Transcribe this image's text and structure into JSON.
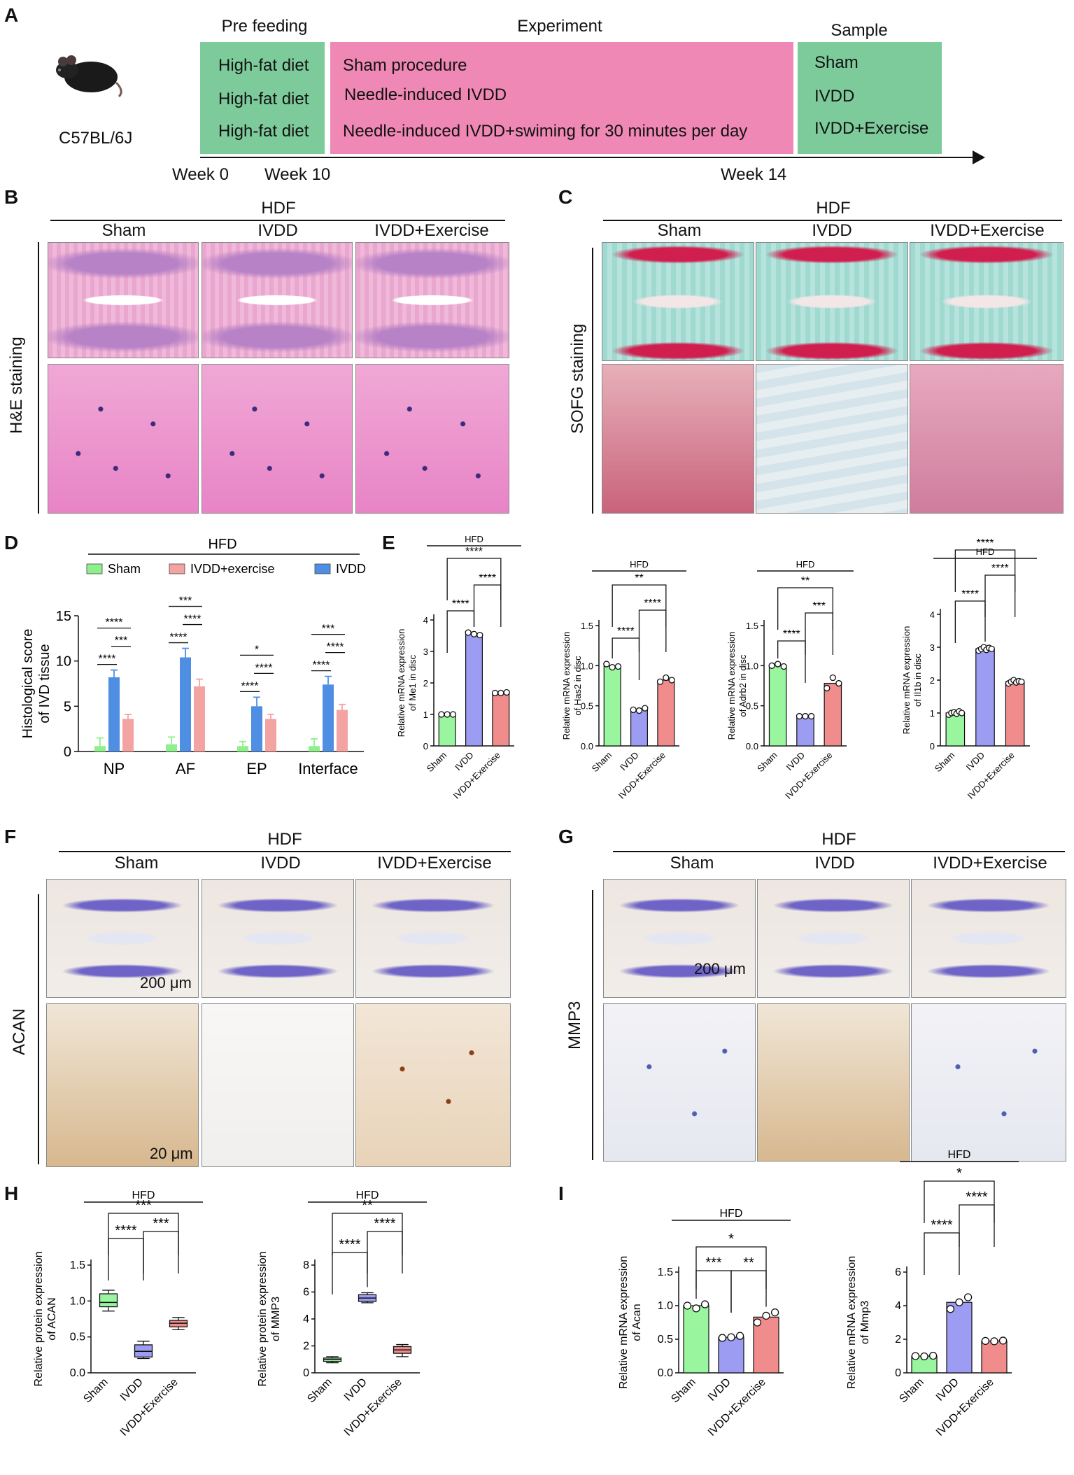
{
  "panelA": {
    "label": "A",
    "mouse_strain": "C57BL/6J",
    "stages": {
      "prefeed": {
        "title": "Pre feeding",
        "rows": [
          "High-fat diet",
          "High-fat diet",
          "High-fat diet"
        ],
        "color": "#7dcb9b"
      },
      "experiment": {
        "title": "Experiment",
        "rows": [
          "Sham procedure",
          "Needle-induced IVDD",
          "Needle-induced IVDD+swiming for 30 minutes per day"
        ],
        "color": "#f088b5"
      },
      "sample": {
        "title": "Sample",
        "rows": [
          "Sham",
          "IVDD",
          "IVDD+Exercise"
        ],
        "color": "#7dcb9b"
      }
    },
    "timeline": [
      "Week 0",
      "Week 10",
      "Week 14"
    ]
  },
  "panelB": {
    "label": "B",
    "group": "HDF",
    "cols": [
      "Sham",
      "IVDD",
      "IVDD+Exercise"
    ],
    "row_label": "H&E staining"
  },
  "panelC": {
    "label": "C",
    "group": "HDF",
    "cols": [
      "Sham",
      "IVDD",
      "IVDD+Exercise"
    ],
    "row_label": "SOFG staining"
  },
  "panelD": {
    "label": "D",
    "group": "HFD"
  },
  "panelE": {
    "label": "E"
  },
  "panelF": {
    "label": "F",
    "group": "HDF",
    "cols": [
      "Sham",
      "IVDD",
      "IVDD+Exercise"
    ],
    "row_label": "ACAN",
    "scale_low": "200 μm",
    "scale_high": "20 μm"
  },
  "panelG": {
    "label": "G",
    "group": "HDF",
    "cols": [
      "Sham",
      "IVDD",
      "IVDD+Exercise"
    ],
    "row_label": "MMP3",
    "scale_low": "200 μm"
  },
  "panelH": {
    "label": "H"
  },
  "panelI": {
    "label": "I"
  },
  "colors": {
    "sham": "#9af59f",
    "ivdd": "#9b9cf2",
    "exercise": "#f18c8c",
    "d_sham": "#8ef08a",
    "d_ivdd": "#4f8fe3",
    "d_exercise": "#f4a3a3"
  },
  "chart_data": [
    {
      "id": "D",
      "type": "bar",
      "title": "HFD",
      "ylabel": "Histological score of IVD tissue",
      "ylim": [
        0,
        15
      ],
      "yticks": [
        0,
        5,
        10,
        15
      ],
      "categories": [
        "NP",
        "AF",
        "EP",
        "Interface"
      ],
      "series": [
        {
          "name": "Sham",
          "values": [
            0.6,
            0.8,
            0.6,
            0.6
          ],
          "errors": [
            0.9,
            0.8,
            0.5,
            0.8
          ]
        },
        {
          "name": "IVDD",
          "values": [
            8.2,
            10.4,
            5.0,
            7.4
          ],
          "errors": [
            0.8,
            1.0,
            1.0,
            0.9
          ]
        },
        {
          "name": "IVDD+exercise",
          "values": [
            3.6,
            7.2,
            3.6,
            4.6
          ],
          "errors": [
            0.5,
            0.8,
            0.5,
            0.6
          ]
        }
      ],
      "legend": [
        "Sham",
        "IVDD+exercise",
        "IVDD"
      ],
      "significance": [
        [
          "****",
          "***",
          "****"
        ],
        [
          "****",
          "****",
          "***"
        ],
        [
          "****",
          "****",
          "*"
        ],
        [
          "****",
          "****",
          "***"
        ]
      ]
    },
    {
      "id": "E1",
      "type": "bar",
      "title": "HFD",
      "ylabel": "Relative mRNA expression of Me1 in disc",
      "ylim": [
        0,
        4
      ],
      "yticks": [
        0,
        1,
        2,
        3,
        4
      ],
      "categories": [
        "Sham",
        "IVDD",
        "IVDD+Exercise"
      ],
      "values": [
        1.0,
        3.55,
        1.68
      ],
      "points": [
        [
          1.0,
          1.0,
          1.0
        ],
        [
          3.6,
          3.55,
          3.52
        ],
        [
          1.68,
          1.68,
          1.7
        ]
      ],
      "significance": [
        [
          "Sham",
          "IVDD",
          "****"
        ],
        [
          "IVDD",
          "IVDD+Exercise",
          "****"
        ],
        [
          "Sham",
          "IVDD+Exercise",
          "****"
        ]
      ]
    },
    {
      "id": "E2",
      "type": "bar",
      "title": "HFD",
      "ylabel": "Relative mRNA expression of Has2 in disc",
      "ylim": [
        0,
        1.5
      ],
      "yticks": [
        0.0,
        0.5,
        1.0,
        1.5
      ],
      "categories": [
        "Sham",
        "IVDD",
        "IVDD+Exercise"
      ],
      "values": [
        1.0,
        0.45,
        0.82
      ],
      "points": [
        [
          1.02,
          0.98,
          0.99
        ],
        [
          0.45,
          0.44,
          0.47
        ],
        [
          0.8,
          0.85,
          0.82
        ]
      ],
      "significance": [
        [
          "Sham",
          "IVDD",
          "****"
        ],
        [
          "IVDD",
          "IVDD+Exercise",
          "****"
        ],
        [
          "Sham",
          "IVDD+Exercise",
          "**"
        ]
      ]
    },
    {
      "id": "E3",
      "type": "bar",
      "title": "HFD",
      "ylabel": "Relative mRNA expression of Adrb2 in disc",
      "ylim": [
        0,
        1.5
      ],
      "yticks": [
        0.0,
        0.5,
        1.0,
        1.5
      ],
      "categories": [
        "Sham",
        "IVDD",
        "IVDD+Exercise"
      ],
      "values": [
        1.0,
        0.37,
        0.78
      ],
      "points": [
        [
          1.0,
          1.02,
          0.99
        ],
        [
          0.37,
          0.37,
          0.37
        ],
        [
          0.72,
          0.85,
          0.78
        ]
      ],
      "significance": [
        [
          "Sham",
          "IVDD",
          "****"
        ],
        [
          "IVDD",
          "IVDD+Exercise",
          "***"
        ],
        [
          "Sham",
          "IVDD+Exercise",
          "**"
        ]
      ]
    },
    {
      "id": "E4",
      "type": "bar",
      "title": "HFD",
      "ylabel": "Relative mRNA expression of Il1b in disc",
      "ylim": [
        0,
        4
      ],
      "yticks": [
        0,
        1,
        2,
        3,
        4
      ],
      "categories": [
        "Sham",
        "IVDD",
        "IVDD+Exercise"
      ],
      "values": [
        1.0,
        2.95,
        1.95
      ],
      "points": [
        [
          0.95,
          1.0,
          1.02,
          0.98,
          1.05,
          1.0
        ],
        [
          2.9,
          2.95,
          3.0,
          2.92,
          2.98,
          2.95
        ],
        [
          1.9,
          1.95,
          2.0,
          1.93,
          1.97,
          1.95
        ]
      ],
      "significance": [
        [
          "Sham",
          "IVDD",
          "****"
        ],
        [
          "IVDD",
          "IVDD+Exercise",
          "****"
        ],
        [
          "Sham",
          "IVDD+Exercise",
          "****"
        ]
      ]
    },
    {
      "id": "H1",
      "type": "box",
      "title": "HFD",
      "ylabel": "Relative protein expression of ACAN",
      "ylim": [
        0,
        1.5
      ],
      "yticks": [
        0.0,
        0.5,
        1.0,
        1.5
      ],
      "categories": [
        "Sham",
        "IVDD",
        "IVDD+Exercise"
      ],
      "boxes": [
        {
          "min": 0.86,
          "q1": 0.92,
          "median": 0.98,
          "q3": 1.1,
          "max": 1.15
        },
        {
          "min": 0.2,
          "q1": 0.22,
          "median": 0.3,
          "q3": 0.39,
          "max": 0.44
        },
        {
          "min": 0.6,
          "q1": 0.64,
          "median": 0.69,
          "q3": 0.73,
          "max": 0.77
        }
      ],
      "significance": [
        [
          "Sham",
          "IVDD",
          "****"
        ],
        [
          "IVDD",
          "IVDD+Exercise",
          "***"
        ],
        [
          "Sham",
          "IVDD+Exercise",
          "***"
        ]
      ]
    },
    {
      "id": "H2",
      "type": "box",
      "title": "HFD",
      "ylabel": "Relative protein expression of MMP3",
      "ylim": [
        0,
        8
      ],
      "yticks": [
        0,
        2,
        4,
        6,
        8
      ],
      "categories": [
        "Sham",
        "IVDD",
        "IVDD+Exercise"
      ],
      "boxes": [
        {
          "min": 0.75,
          "q1": 0.85,
          "median": 1.0,
          "q3": 1.1,
          "max": 1.2
        },
        {
          "min": 5.2,
          "q1": 5.3,
          "median": 5.55,
          "q3": 5.8,
          "max": 5.95
        },
        {
          "min": 1.2,
          "q1": 1.45,
          "median": 1.7,
          "q3": 1.95,
          "max": 2.1
        }
      ],
      "significance": [
        [
          "Sham",
          "IVDD",
          "****"
        ],
        [
          "IVDD",
          "IVDD+Exercise",
          "****"
        ],
        [
          "Sham",
          "IVDD+Exercise",
          "**"
        ]
      ]
    },
    {
      "id": "I1",
      "type": "bar",
      "title": "HFD",
      "ylabel": "Relative mRNA expression of Acan",
      "ylim": [
        0,
        1.5
      ],
      "yticks": [
        0.0,
        0.5,
        1.0,
        1.5
      ],
      "categories": [
        "Sham",
        "IVDD",
        "IVDD+Exercise"
      ],
      "values": [
        1.0,
        0.53,
        0.83
      ],
      "points": [
        [
          1.0,
          0.96,
          1.02
        ],
        [
          0.52,
          0.53,
          0.55
        ],
        [
          0.75,
          0.85,
          0.9
        ]
      ],
      "significance": [
        [
          "Sham",
          "IVDD",
          "***"
        ],
        [
          "IVDD",
          "IVDD+Exercise",
          "**"
        ],
        [
          "Sham",
          "IVDD+Exercise",
          "*"
        ]
      ]
    },
    {
      "id": "I2",
      "type": "bar",
      "title": "HFD",
      "ylabel": "Relative mRNA expression of Mmp3",
      "ylim": [
        0,
        6
      ],
      "yticks": [
        0,
        2,
        4,
        6
      ],
      "categories": [
        "Sham",
        "IVDD",
        "IVDD+Exercise"
      ],
      "values": [
        1.0,
        4.2,
        1.9
      ],
      "points": [
        [
          1.0,
          0.98,
          1.02
        ],
        [
          3.8,
          4.2,
          4.5
        ],
        [
          1.9,
          1.88,
          1.92
        ]
      ],
      "significance": [
        [
          "Sham",
          "IVDD",
          "****"
        ],
        [
          "IVDD",
          "IVDD+Exercise",
          "****"
        ],
        [
          "Sham",
          "IVDD+Exercise",
          "*"
        ]
      ]
    }
  ]
}
